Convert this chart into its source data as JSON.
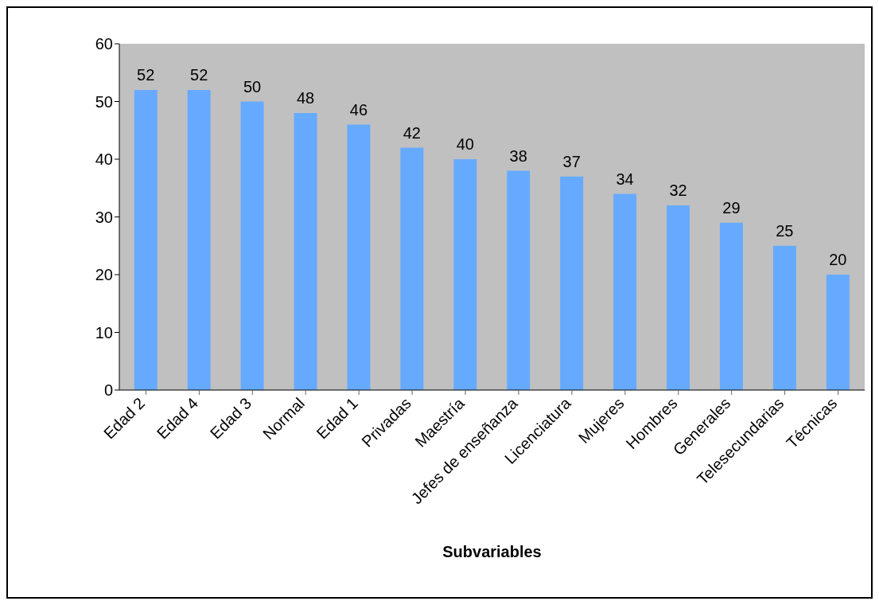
{
  "chart_data": {
    "type": "bar",
    "xlabel": "Subvariables",
    "categories": [
      "Edad 2",
      "Edad 4",
      "Edad 3",
      "Normal",
      "Edad 1",
      "Privadas",
      "Maestría",
      "Jefes de enseñanza",
      "Licenciatura",
      "Mujeres",
      "Hombres",
      "Generales",
      "Telesecundarias",
      "Técnicas"
    ],
    "values": [
      52,
      52,
      50,
      48,
      46,
      42,
      40,
      38,
      37,
      34,
      32,
      29,
      25,
      20
    ],
    "color": "#66aaff",
    "ylim": [
      0,
      60
    ],
    "yticks": [
      0,
      10,
      20,
      30,
      40,
      50,
      60
    ],
    "grid": false,
    "data_labels": true
  }
}
